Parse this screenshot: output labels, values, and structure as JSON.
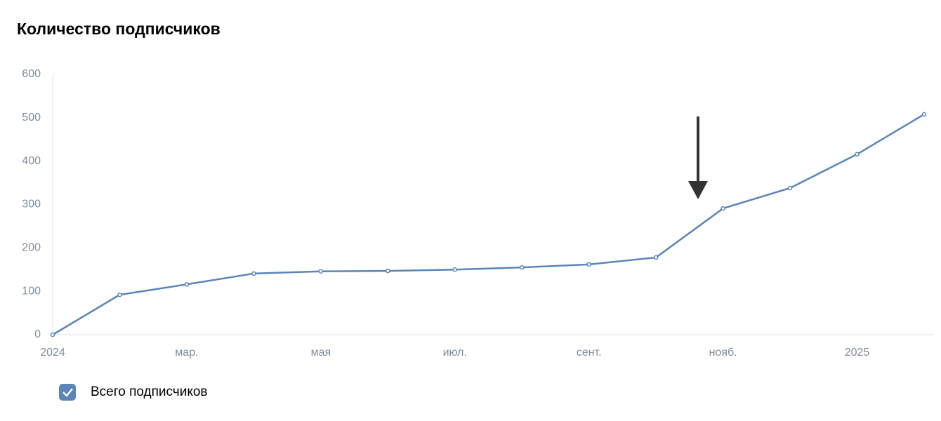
{
  "chart_data": {
    "type": "line",
    "title": "Количество подписчиков",
    "x": [
      "2024-01",
      "2024-02",
      "2024-03",
      "2024-04",
      "2024-05",
      "2024-06",
      "2024-07",
      "2024-08",
      "2024-09",
      "2024-10",
      "2024-11",
      "2024-12",
      "2025-01",
      "2025-02"
    ],
    "series": [
      {
        "name": "Всего подписчиков",
        "color": "#5b84b8",
        "values": [
          0,
          92,
          116,
          141,
          146,
          147,
          150,
          155,
          162,
          178,
          291,
          338,
          416,
          508
        ]
      }
    ],
    "xlim": [
      "2024-01",
      "2025-02"
    ],
    "xticks": [
      {
        "value": "2024-01",
        "label": "2024"
      },
      {
        "value": "2024-03",
        "label": "мар."
      },
      {
        "value": "2024-05",
        "label": "мая"
      },
      {
        "value": "2024-07",
        "label": "июл."
      },
      {
        "value": "2024-09",
        "label": "сент."
      },
      {
        "value": "2024-11",
        "label": "нояб."
      },
      {
        "value": "2025-01",
        "label": "2025"
      }
    ],
    "ylim": [
      0,
      600
    ],
    "yticks": [
      0,
      100,
      200,
      300,
      400,
      500,
      600
    ],
    "grid": false
  }
}
